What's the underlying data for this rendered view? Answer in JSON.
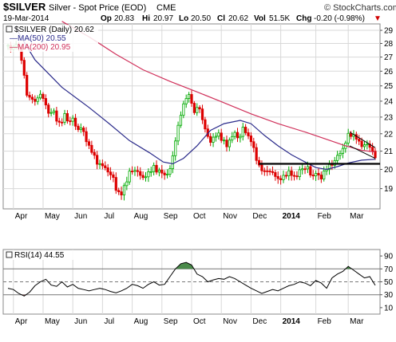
{
  "header": {
    "symbol": "$SILVER",
    "description": "Silver - Spot Price (EOD)",
    "exchange": "CME",
    "brand": "© StockCharts.com",
    "date": "19-Mar-2014",
    "open_label": "Op",
    "open_value": "20.83",
    "high_label": "Hi",
    "high_value": "20.97",
    "low_label": "Lo",
    "low_value": "20.50",
    "close_label": "Cl",
    "close_value": "20.62",
    "volume_label": "Vol",
    "volume_value": "51.5K",
    "change_label": "Chg",
    "change_value": "-0.20 (-0.98%)",
    "change_arrow": "▼"
  },
  "legend": {
    "price": "$SILVER (Daily) 20.62",
    "ma50": "MA(50) 20.55",
    "ma200": "MA(200) 20.95"
  },
  "rsi_legend": "RSI(14) 44.55",
  "colors": {
    "up": "#00aa00",
    "down": "#dd0000",
    "ma50": "#2a2a8a",
    "ma200": "#d0305a",
    "rsi": "#000000",
    "rsi_fill": "#4a8a4a",
    "grid": "#d8d8d8",
    "support": "#000000",
    "wedge": "#000000"
  },
  "chart_data": [
    {
      "type": "candlestick",
      "title": "$SILVER (Daily) 20.62",
      "x_labels": [
        "Apr",
        "May",
        "Jun",
        "Jul",
        "Aug",
        "Sep",
        "Oct",
        "Nov",
        "Dec",
        "2014",
        "Feb",
        "Mar"
      ],
      "y_ticks": [
        19,
        20,
        21,
        22,
        23,
        24,
        25,
        26,
        27,
        28,
        29
      ],
      "ylim": [
        18.0,
        29.5
      ],
      "y_scale": "log",
      "grid": true,
      "series": [
        {
          "name": "$SILVER (Daily) 20.62",
          "kind": "price_path",
          "points": [
            [
              0,
              27.8
            ],
            [
              3,
              27.5
            ],
            [
              5,
              28.0
            ],
            [
              7,
              27.9
            ],
            [
              9,
              27.3
            ],
            [
              11,
              26.5
            ],
            [
              13,
              24.8
            ],
            [
              15,
              24.0
            ],
            [
              17,
              24.4
            ],
            [
              20,
              23.9
            ],
            [
              24,
              24.5
            ],
            [
              27,
              24.0
            ],
            [
              30,
              23.2
            ],
            [
              33,
              23.5
            ],
            [
              36,
              22.8
            ],
            [
              39,
              22.6
            ],
            [
              42,
              23.1
            ],
            [
              45,
              22.7
            ],
            [
              48,
              22.9
            ],
            [
              51,
              22.2
            ],
            [
              54,
              22.4
            ],
            [
              57,
              21.8
            ],
            [
              60,
              21.3
            ],
            [
              63,
              20.8
            ],
            [
              66,
              20.4
            ],
            [
              69,
              20.2
            ],
            [
              72,
              20.1
            ],
            [
              75,
              19.8
            ],
            [
              78,
              19.5
            ],
            [
              81,
              18.8
            ],
            [
              84,
              18.7
            ],
            [
              87,
              19.3
            ],
            [
              90,
              19.8
            ],
            [
              93,
              20.0
            ],
            [
              96,
              19.9
            ],
            [
              99,
              19.5
            ],
            [
              102,
              19.7
            ],
            [
              105,
              19.8
            ],
            [
              108,
              20.2
            ],
            [
              111,
              19.8
            ],
            [
              114,
              19.9
            ],
            [
              117,
              19.6
            ],
            [
              120,
              20.0
            ],
            [
              123,
              21.2
            ],
            [
              126,
              22.4
            ],
            [
              129,
              23.6
            ],
            [
              132,
              24.2
            ],
            [
              135,
              24.4
            ],
            [
              138,
              23.2
            ],
            [
              141,
              23.8
            ],
            [
              144,
              22.9
            ],
            [
              147,
              21.9
            ],
            [
              150,
              21.6
            ],
            [
              153,
              21.8
            ],
            [
              156,
              22.0
            ],
            [
              159,
              21.6
            ],
            [
              162,
              21.3
            ],
            [
              165,
              21.8
            ],
            [
              168,
              22.0
            ],
            [
              171,
              21.7
            ],
            [
              174,
              22.3
            ],
            [
              177,
              22.0
            ],
            [
              180,
              21.6
            ],
            [
              183,
              20.8
            ],
            [
              186,
              20.2
            ],
            [
              189,
              19.8
            ],
            [
              192,
              20.0
            ],
            [
              195,
              19.8
            ],
            [
              198,
              19.7
            ],
            [
              201,
              19.4
            ],
            [
              204,
              19.6
            ],
            [
              207,
              19.9
            ],
            [
              210,
              19.7
            ],
            [
              213,
              19.6
            ],
            [
              216,
              19.9
            ],
            [
              219,
              20.1
            ],
            [
              222,
              20.1
            ],
            [
              225,
              19.5
            ],
            [
              228,
              19.9
            ],
            [
              231,
              19.4
            ],
            [
              234,
              19.9
            ],
            [
              237,
              20.1
            ],
            [
              240,
              20.3
            ],
            [
              243,
              20.6
            ],
            [
              246,
              20.9
            ],
            [
              249,
              21.3
            ],
            [
              252,
              21.9
            ],
            [
              255,
              22.0
            ],
            [
              258,
              21.7
            ],
            [
              261,
              21.4
            ],
            [
              264,
              21.3
            ],
            [
              267,
              21.4
            ],
            [
              270,
              21.0
            ],
            [
              272,
              20.62
            ]
          ]
        },
        {
          "name": "MA(50) 20.55",
          "kind": "ma",
          "points": [
            [
              5,
              29.3
            ],
            [
              20,
              26.8
            ],
            [
              40,
              24.9
            ],
            [
              60,
              23.6
            ],
            [
              75,
              22.6
            ],
            [
              90,
              21.6
            ],
            [
              105,
              20.9
            ],
            [
              115,
              20.4
            ],
            [
              122,
              20.3
            ],
            [
              130,
              20.6
            ],
            [
              140,
              21.3
            ],
            [
              150,
              22.2
            ],
            [
              160,
              22.6
            ],
            [
              172,
              22.8
            ],
            [
              180,
              22.6
            ],
            [
              190,
              21.9
            ],
            [
              200,
              21.3
            ],
            [
              210,
              20.8
            ],
            [
              220,
              20.4
            ],
            [
              228,
              20.1
            ],
            [
              236,
              20.0
            ],
            [
              244,
              20.15
            ],
            [
              252,
              20.35
            ],
            [
              262,
              20.5
            ],
            [
              272,
              20.55
            ]
          ]
        },
        {
          "name": "MA(200) 20.95",
          "kind": "ma",
          "points": [
            [
              40,
              29.7
            ],
            [
              60,
              28.5
            ],
            [
              80,
              27.2
            ],
            [
              100,
              26.1
            ],
            [
              120,
              25.3
            ],
            [
              140,
              24.6
            ],
            [
              160,
              23.9
            ],
            [
              180,
              23.2
            ],
            [
              200,
              22.6
            ],
            [
              220,
              22.1
            ],
            [
              235,
              21.7
            ],
            [
              250,
              21.3
            ],
            [
              262,
              21.05
            ],
            [
              272,
              20.95
            ]
          ]
        }
      ],
      "annotations": [
        {
          "type": "support_line",
          "value": 20.3
        },
        {
          "type": "wedge",
          "upper": [
            [
              253,
              22.1
            ],
            [
              272,
              21.2
            ]
          ],
          "lower": [
            [
              253,
              21.3
            ],
            [
              272,
              20.6
            ]
          ]
        }
      ]
    },
    {
      "type": "line",
      "title": "RSI(14) 44.55",
      "x_labels": [
        "Apr",
        "May",
        "Jun",
        "Jul",
        "Aug",
        "Sep",
        "Oct",
        "Nov",
        "Dec",
        "2014",
        "Feb",
        "Mar"
      ],
      "y_ticks": [
        10,
        30,
        50,
        70,
        90
      ],
      "ylim": [
        0,
        100
      ],
      "reference_lines": [
        30,
        50,
        70
      ],
      "series": [
        {
          "name": "RSI(14) 44.55",
          "points": [
            [
              0,
              40
            ],
            [
              4,
              38
            ],
            [
              8,
              32
            ],
            [
              12,
              28
            ],
            [
              16,
              34
            ],
            [
              20,
              44
            ],
            [
              24,
              50
            ],
            [
              28,
              54
            ],
            [
              32,
              45
            ],
            [
              36,
              43
            ],
            [
              40,
              50
            ],
            [
              44,
              42
            ],
            [
              48,
              46
            ],
            [
              52,
              40
            ],
            [
              56,
              38
            ],
            [
              60,
              36
            ],
            [
              64,
              38
            ],
            [
              68,
              40
            ],
            [
              72,
              38
            ],
            [
              76,
              35
            ],
            [
              80,
              33
            ],
            [
              84,
              36
            ],
            [
              88,
              40
            ],
            [
              92,
              46
            ],
            [
              96,
              44
            ],
            [
              100,
              40
            ],
            [
              104,
              46
            ],
            [
              108,
              50
            ],
            [
              112,
              45
            ],
            [
              116,
              46
            ],
            [
              120,
              58
            ],
            [
              124,
              70
            ],
            [
              128,
              78
            ],
            [
              132,
              80
            ],
            [
              136,
              76
            ],
            [
              140,
              62
            ],
            [
              144,
              58
            ],
            [
              148,
              50
            ],
            [
              152,
              53
            ],
            [
              156,
              55
            ],
            [
              160,
              54
            ],
            [
              164,
              58
            ],
            [
              168,
              55
            ],
            [
              172,
              50
            ],
            [
              176,
              45
            ],
            [
              180,
              40
            ],
            [
              184,
              36
            ],
            [
              188,
              32
            ],
            [
              192,
              35
            ],
            [
              196,
              38
            ],
            [
              200,
              36
            ],
            [
              204,
              40
            ],
            [
              208,
              44
            ],
            [
              212,
              46
            ],
            [
              216,
              50
            ],
            [
              220,
              48
            ],
            [
              224,
              44
            ],
            [
              228,
              52
            ],
            [
              232,
              48
            ],
            [
              236,
              40
            ],
            [
              240,
              56
            ],
            [
              244,
              62
            ],
            [
              248,
              66
            ],
            [
              252,
              74
            ],
            [
              256,
              68
            ],
            [
              260,
              62
            ],
            [
              264,
              56
            ],
            [
              268,
              58
            ],
            [
              272,
              44.55
            ]
          ]
        }
      ]
    }
  ]
}
